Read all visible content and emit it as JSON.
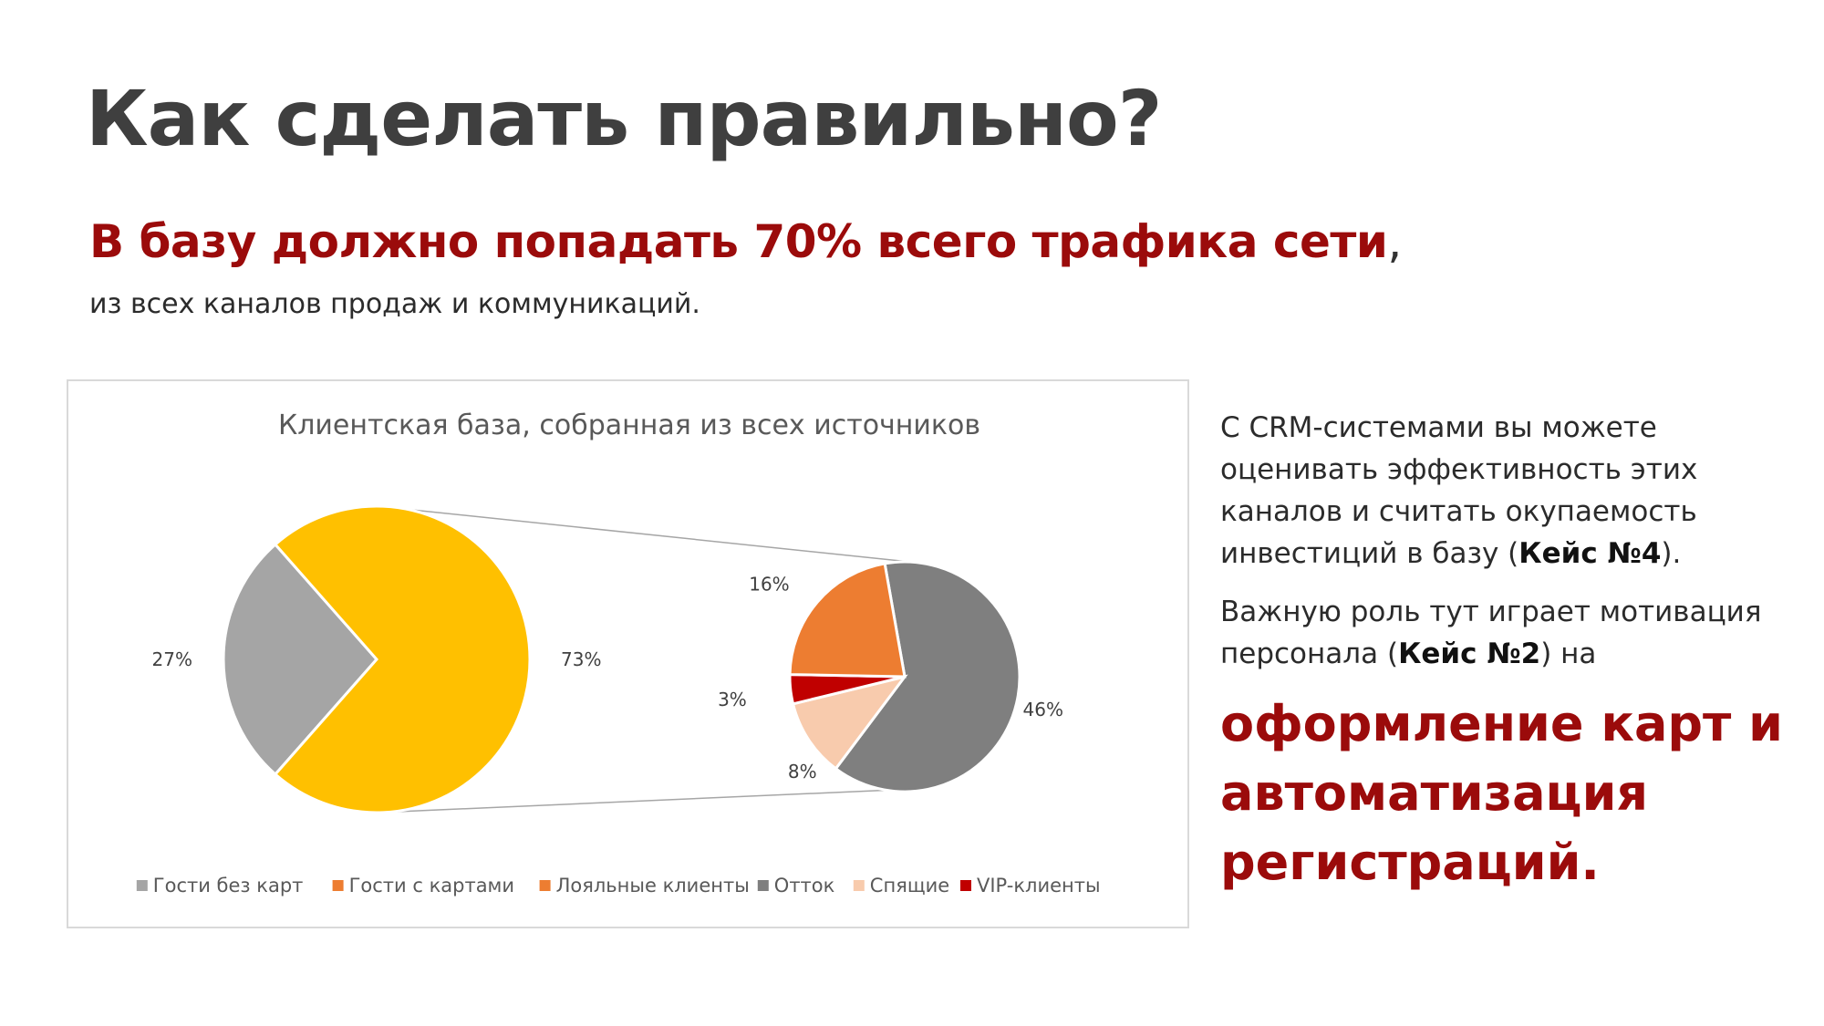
{
  "heading": "Как сделать правильно?",
  "subheading": {
    "main": "В базу должно попадать 70% всего трафика сети",
    "comma": ",",
    "line2": "из всех каналов продаж и коммуникаций."
  },
  "side_text": {
    "p1_part1": "С CRM-системами вы можете оценивать эффективность этих каналов и считать окупаемость инвестиций в базу (",
    "p1_bold": "Кейс №4",
    "p1_part2": ").",
    "p2_part1": "Важную роль тут играет мотивация персонала (",
    "p2_bold": "Кейс №2",
    "p2_part2": ") на",
    "accent": "оформление карт и автоматизация регистраций."
  },
  "chart_data": {
    "type": "pie",
    "title": "Клиентская база, собранная из всех источников",
    "primary": {
      "slices": [
        {
          "name": "Гости без карт",
          "value": 27,
          "label": "27%",
          "color": "#a5a5a5"
        },
        {
          "name": "Гости с картами",
          "value": 73,
          "label": "73%",
          "color": "#ffc000"
        }
      ]
    },
    "secondary": {
      "breakdown_of": "Гости с картами",
      "slices": [
        {
          "name": "Отток",
          "value": 46,
          "label": "46%",
          "color": "#7f7f7f"
        },
        {
          "name": "Спящие",
          "value": 8,
          "label": "8%",
          "color": "#f8cbad"
        },
        {
          "name": "VIP-клиенты",
          "value": 3,
          "label": "3%",
          "color": "#c00000"
        },
        {
          "name": "Лояльные клиенты",
          "value": 16,
          "label": "16%",
          "color": "#ed7d31"
        }
      ]
    },
    "legend": {
      "placement": "bottom",
      "items": [
        {
          "name": "Гости без карт",
          "color": "#a5a5a5"
        },
        {
          "name": "Гости с картами",
          "color": "#ed7d31"
        },
        {
          "name": "Лояльные клиенты",
          "color": "#ed7d31"
        },
        {
          "name": "Отток",
          "color": "#7f7f7f"
        },
        {
          "name": "Спящие",
          "color": "#f8cbad"
        },
        {
          "name": "VIP-клиенты",
          "color": "#c00000"
        }
      ]
    }
  }
}
